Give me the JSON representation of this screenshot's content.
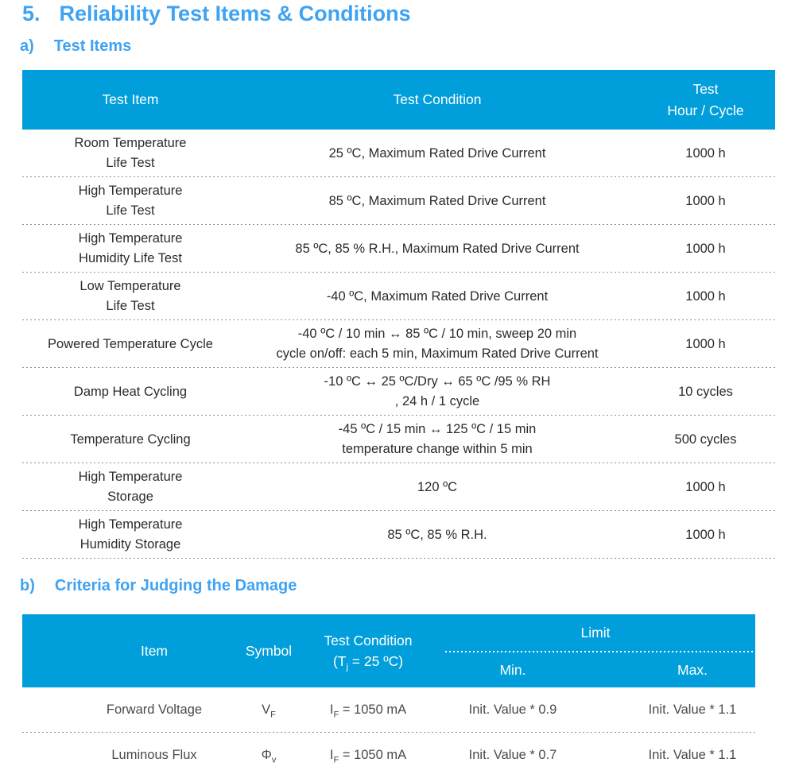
{
  "title": {
    "number": "5.",
    "text": "Reliability Test Items & Conditions"
  },
  "sections": {
    "a_label": "a)",
    "a_title": "Test Items",
    "b_label": "b)",
    "b_title": "Criteria for Judging the Damage"
  },
  "colors": {
    "table_header_bg": "#009edb",
    "heading_blue": "#3ea3f3",
    "body_text": "#2b2b2b"
  },
  "test_items_table": {
    "headers": {
      "item": "Test Item",
      "condition": "Test Condition",
      "hour_line1": "Test",
      "hour_line2": "Hour / Cycle"
    },
    "rows": [
      {
        "item": [
          "Room Temperature",
          "Life Test"
        ],
        "cond": [
          "25 ºC, Maximum Rated Drive Current"
        ],
        "hour": "1000 h"
      },
      {
        "item": [
          "High Temperature",
          "Life Test"
        ],
        "cond": [
          "85 ºC, Maximum Rated Drive Current"
        ],
        "hour": "1000 h"
      },
      {
        "item": [
          "High Temperature",
          "Humidity Life Test"
        ],
        "cond": [
          "85 ºC, 85 % R.H., Maximum Rated Drive Current"
        ],
        "hour": "1000 h"
      },
      {
        "item": [
          "Low Temperature",
          "Life Test"
        ],
        "cond": [
          "-40 ºC, Maximum Rated Drive Current"
        ],
        "hour": "1000 h"
      },
      {
        "item": [
          "Powered Temperature Cycle"
        ],
        "cond": [
          "-40 ºC / 10 min ↔ 85 ºC / 10 min, sweep 20 min",
          "cycle on/off: each 5 min, Maximum Rated Drive Current"
        ],
        "hour": "1000 h"
      },
      {
        "item": [
          "Damp Heat Cycling"
        ],
        "cond": [
          "-10 ºC ↔ 25 ºC/Dry ↔ 65 ºC /95 % RH",
          ", 24 h / 1 cycle"
        ],
        "hour": "10 cycles"
      },
      {
        "item": [
          "Temperature Cycling"
        ],
        "cond": [
          "-45 ºC / 15 min ↔ 125 ºC / 15 min",
          "temperature change within 5 min"
        ],
        "hour": "500 cycles"
      },
      {
        "item": [
          "High Temperature",
          "Storage"
        ],
        "cond": [
          "120 ºC"
        ],
        "hour": "1000 h"
      },
      {
        "item": [
          "High Temperature",
          "Humidity Storage"
        ],
        "cond": [
          "85 ºC, 85 % R.H."
        ],
        "hour": "1000 h"
      }
    ]
  },
  "criteria_table": {
    "headers": {
      "item": "Item",
      "symbol": "Symbol",
      "condition_line1": "Test Condition",
      "cond_prefix": "(T",
      "cond_sub": "j",
      "cond_rest": " = 25 ºC)",
      "limit": "Limit",
      "min": "Min.",
      "max": "Max."
    },
    "rows": [
      {
        "item": "Forward Voltage",
        "symbol_base": "V",
        "symbol_sub": "F",
        "cond_base": "I",
        "cond_sub": "F",
        "cond_rest": " = 1050 mA",
        "min": "Init. Value * 0.9",
        "max": "Init. Value * 1.1"
      },
      {
        "item": "Luminous Flux",
        "symbol_base": "Φ",
        "symbol_sub": "v",
        "cond_base": "I",
        "cond_sub": "F",
        "cond_rest": " = 1050 mA",
        "min": "Init. Value * 0.7",
        "max": "Init. Value * 1.1"
      }
    ]
  }
}
